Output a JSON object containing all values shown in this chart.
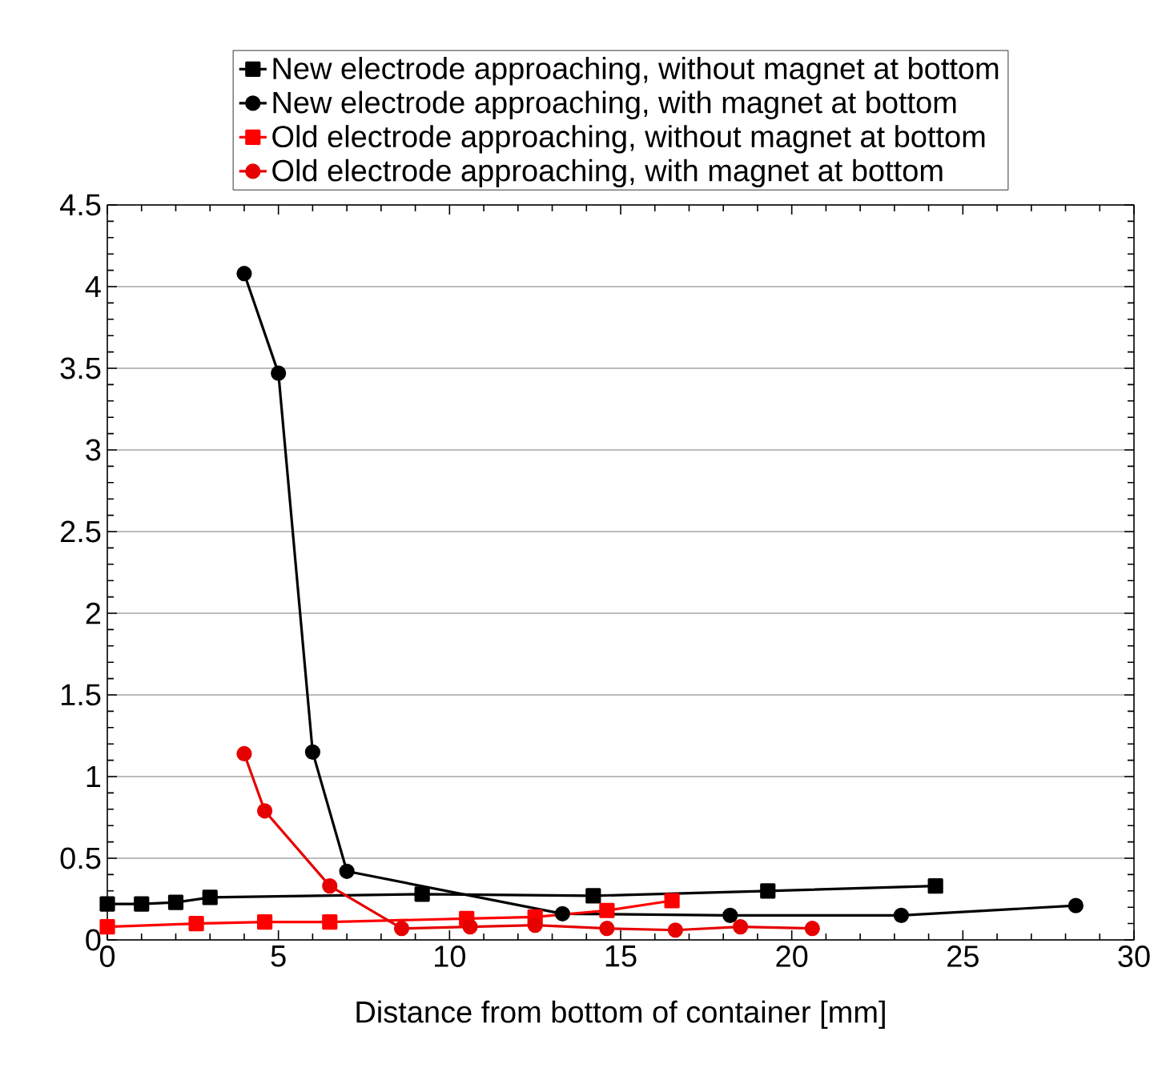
{
  "chart_data": {
    "type": "line",
    "xlabel": "Distance from bottom of container [mm]",
    "xlim": [
      0,
      30
    ],
    "xticks": [
      0,
      5,
      10,
      15,
      20,
      25,
      30
    ],
    "ylim": [
      0,
      4.5
    ],
    "yticks": [
      0,
      0.5,
      1,
      1.5,
      2,
      2.5,
      3,
      3.5,
      4,
      4.5
    ],
    "grid": "y",
    "legend": "top",
    "line_style": "solid",
    "series": [
      {
        "name": "New electrode approaching, without magnet at bottom",
        "color": "#000000",
        "marker": "square",
        "x": [
          0,
          1,
          2,
          3,
          9.2,
          14.2,
          19.3,
          24.2
        ],
        "values": [
          0.22,
          0.22,
          0.23,
          0.26,
          0.28,
          0.27,
          0.3,
          0.33
        ]
      },
      {
        "name": "New electrode approaching, with magnet at bottom",
        "color": "#000000",
        "marker": "circle",
        "x": [
          4,
          5,
          6,
          7,
          13.3,
          18.2,
          23.2,
          28.3
        ],
        "values": [
          4.08,
          3.47,
          1.15,
          0.42,
          0.16,
          0.15,
          0.15,
          0.21
        ]
      },
      {
        "name": "Old electrode approaching, without magnet at bottom",
        "color": "#ff0000",
        "marker": "square",
        "x": [
          0,
          2.6,
          4.6,
          6.5,
          10.5,
          12.5,
          14.6,
          16.5
        ],
        "values": [
          0.08,
          0.1,
          0.11,
          0.11,
          0.13,
          0.14,
          0.18,
          0.24
        ]
      },
      {
        "name": "Old electrode approaching, with magnet at bottom",
        "color": "#e60000",
        "marker": "circle",
        "x": [
          4,
          4.6,
          6.5,
          8.6,
          10.6,
          12.5,
          14.6,
          16.6,
          18.5,
          20.6
        ],
        "values": [
          1.14,
          0.79,
          0.33,
          0.07,
          0.08,
          0.09,
          0.07,
          0.06,
          0.08,
          0.07
        ]
      }
    ]
  }
}
